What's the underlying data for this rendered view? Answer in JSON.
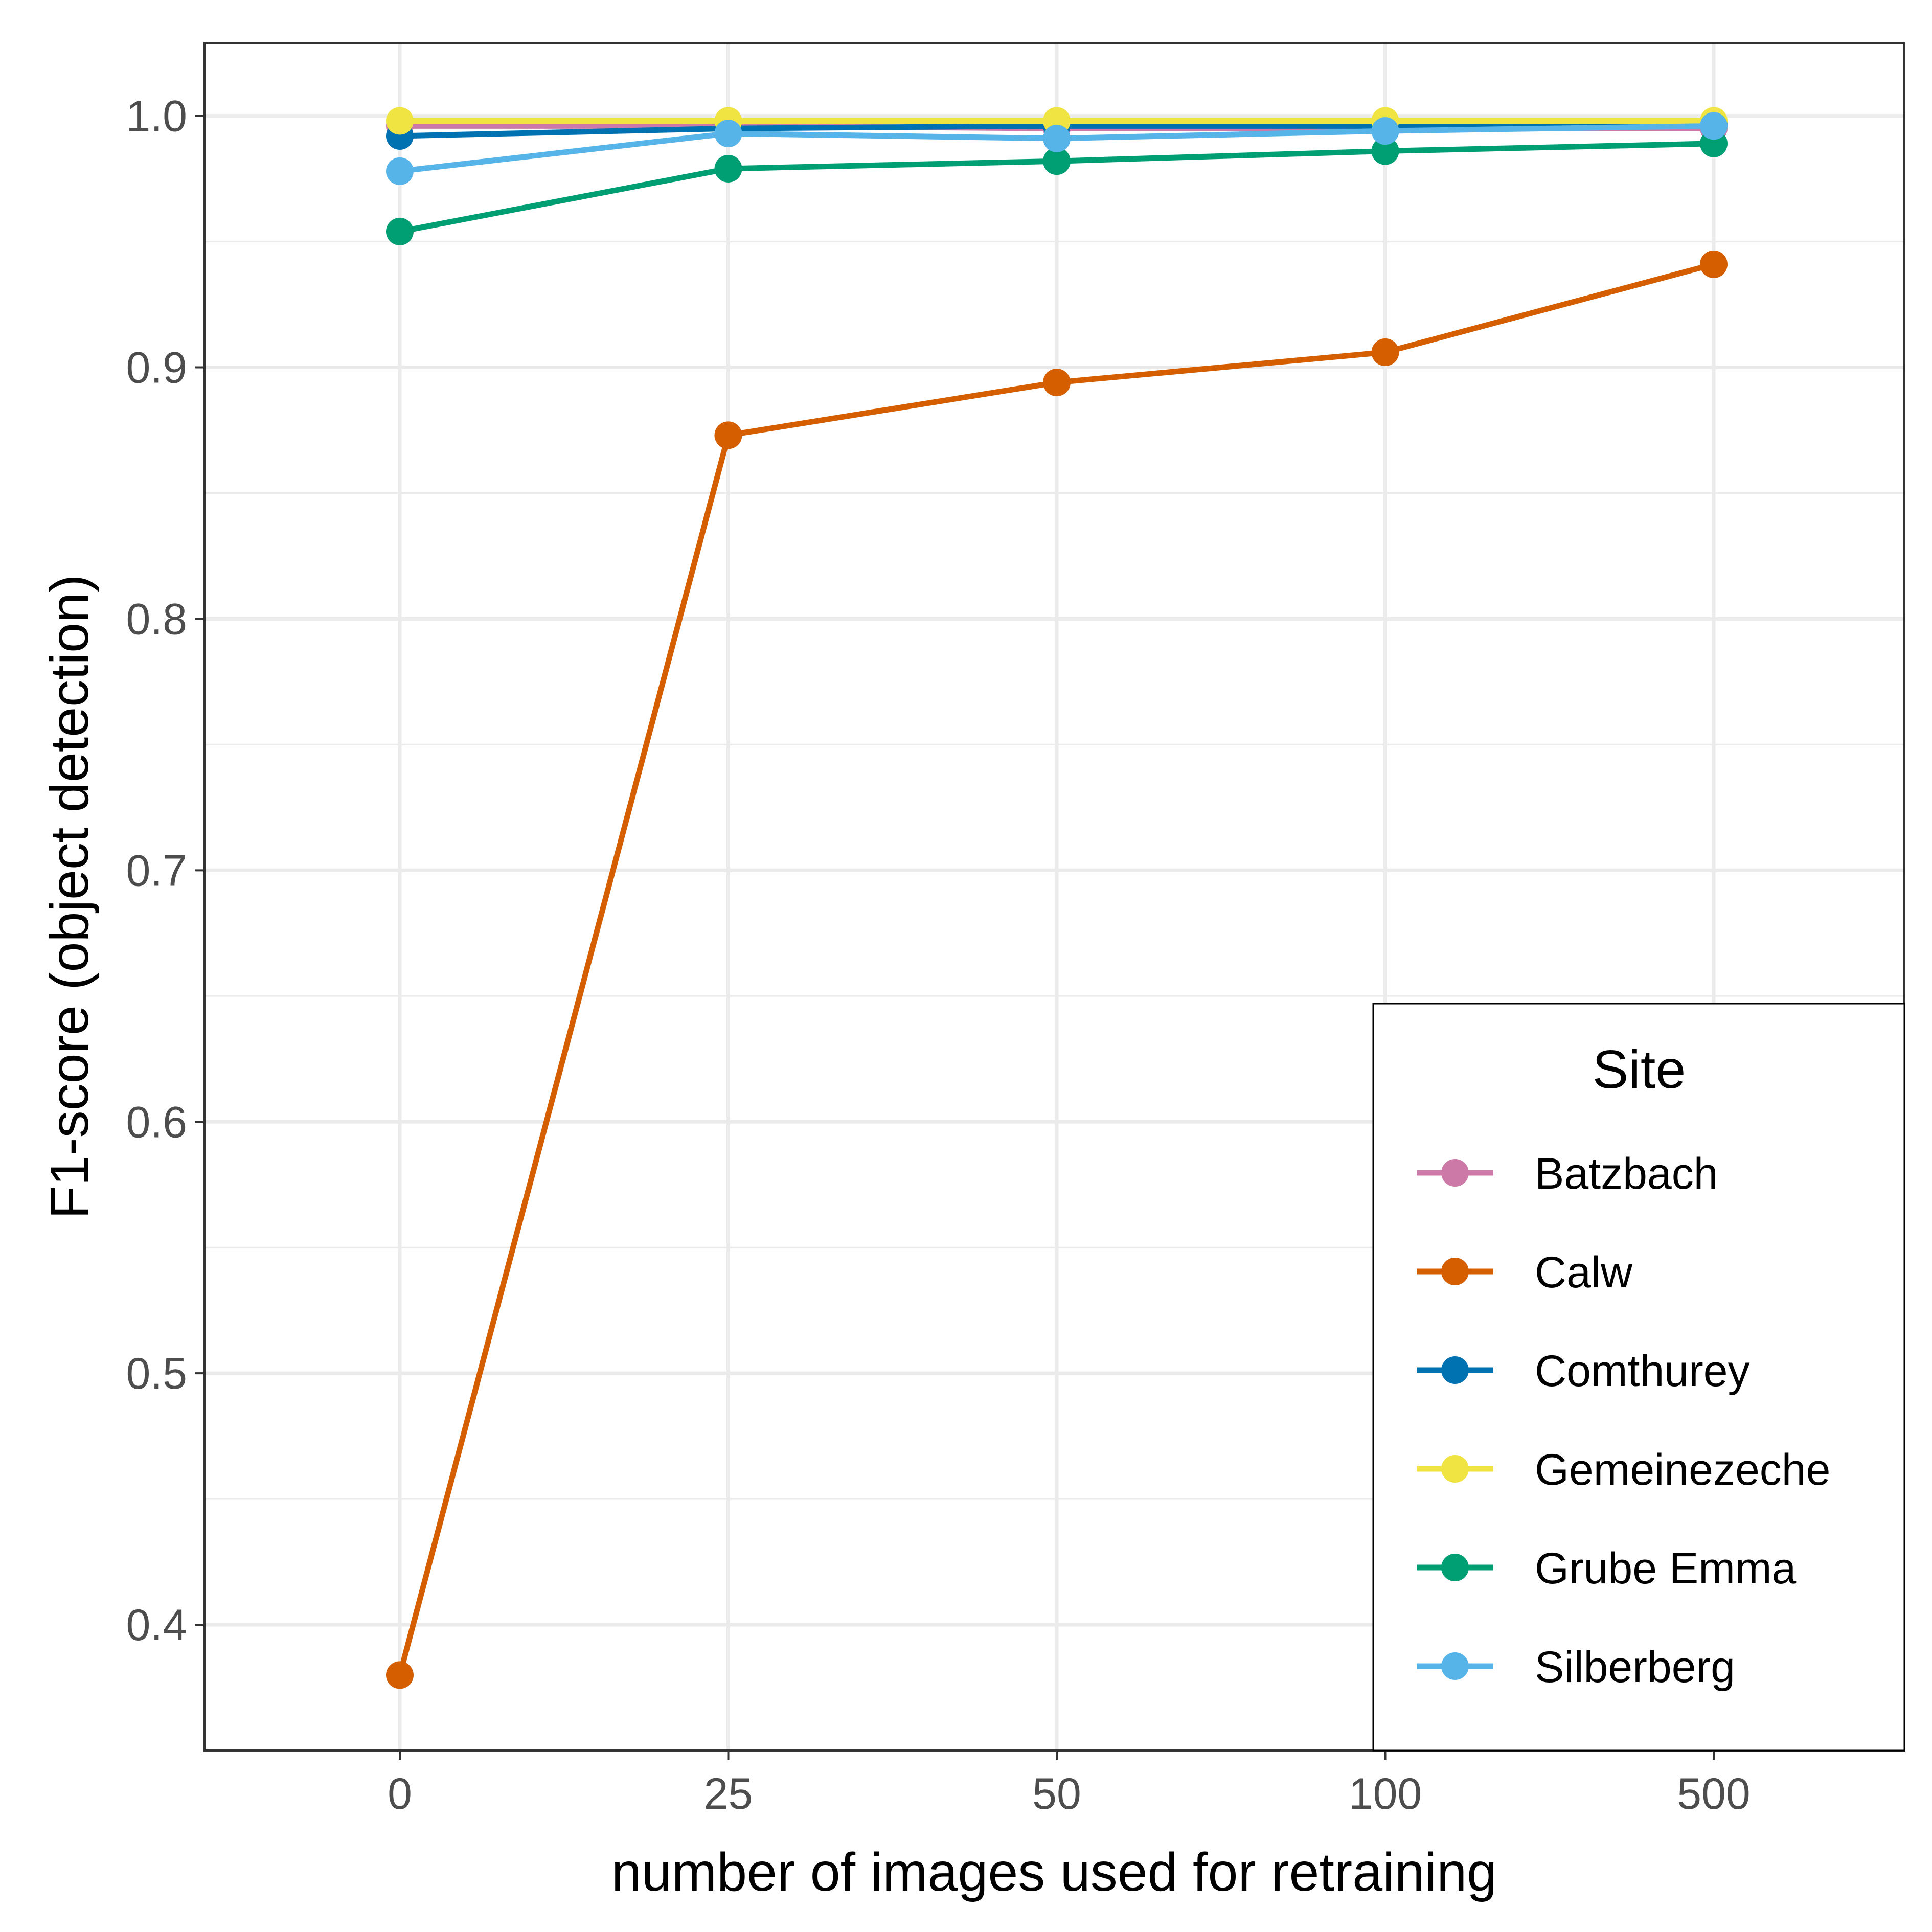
{
  "chart_data": {
    "type": "line",
    "xlabel": "number of images used for retraining",
    "ylabel": "F1-score (object detection)",
    "categories": [
      "0",
      "25",
      "50",
      "100",
      "500"
    ],
    "ylim": [
      0.35,
      1.029
    ],
    "yticks": [
      0.4,
      0.5,
      0.6,
      0.7,
      0.8,
      0.9,
      1.0
    ],
    "ytick_labels": [
      "0.4",
      "0.5",
      "0.6",
      "0.7",
      "0.8",
      "0.9",
      "1.0"
    ],
    "grid": true,
    "legend": {
      "title": "Site",
      "position": "bottom-right"
    },
    "series": [
      {
        "name": "Batzbach",
        "color": "#CC79A7",
        "values": [
          0.996,
          0.996,
          0.995,
          0.995,
          0.995
        ]
      },
      {
        "name": "Calw",
        "color": "#D55E00",
        "values": [
          0.38,
          0.873,
          0.894,
          0.906,
          0.941
        ]
      },
      {
        "name": "Comthurey",
        "color": "#0072B2",
        "values": [
          0.992,
          0.995,
          0.996,
          0.996,
          0.997
        ]
      },
      {
        "name": "Gemeinezeche",
        "color": "#F0E442",
        "values": [
          0.998,
          0.998,
          0.998,
          0.998,
          0.998
        ]
      },
      {
        "name": "Grube Emma",
        "color": "#009E73",
        "values": [
          0.954,
          0.979,
          0.982,
          0.986,
          0.989
        ]
      },
      {
        "name": "Silberberg",
        "color": "#56B4E9",
        "values": [
          0.978,
          0.993,
          0.991,
          0.994,
          0.996
        ]
      }
    ]
  }
}
